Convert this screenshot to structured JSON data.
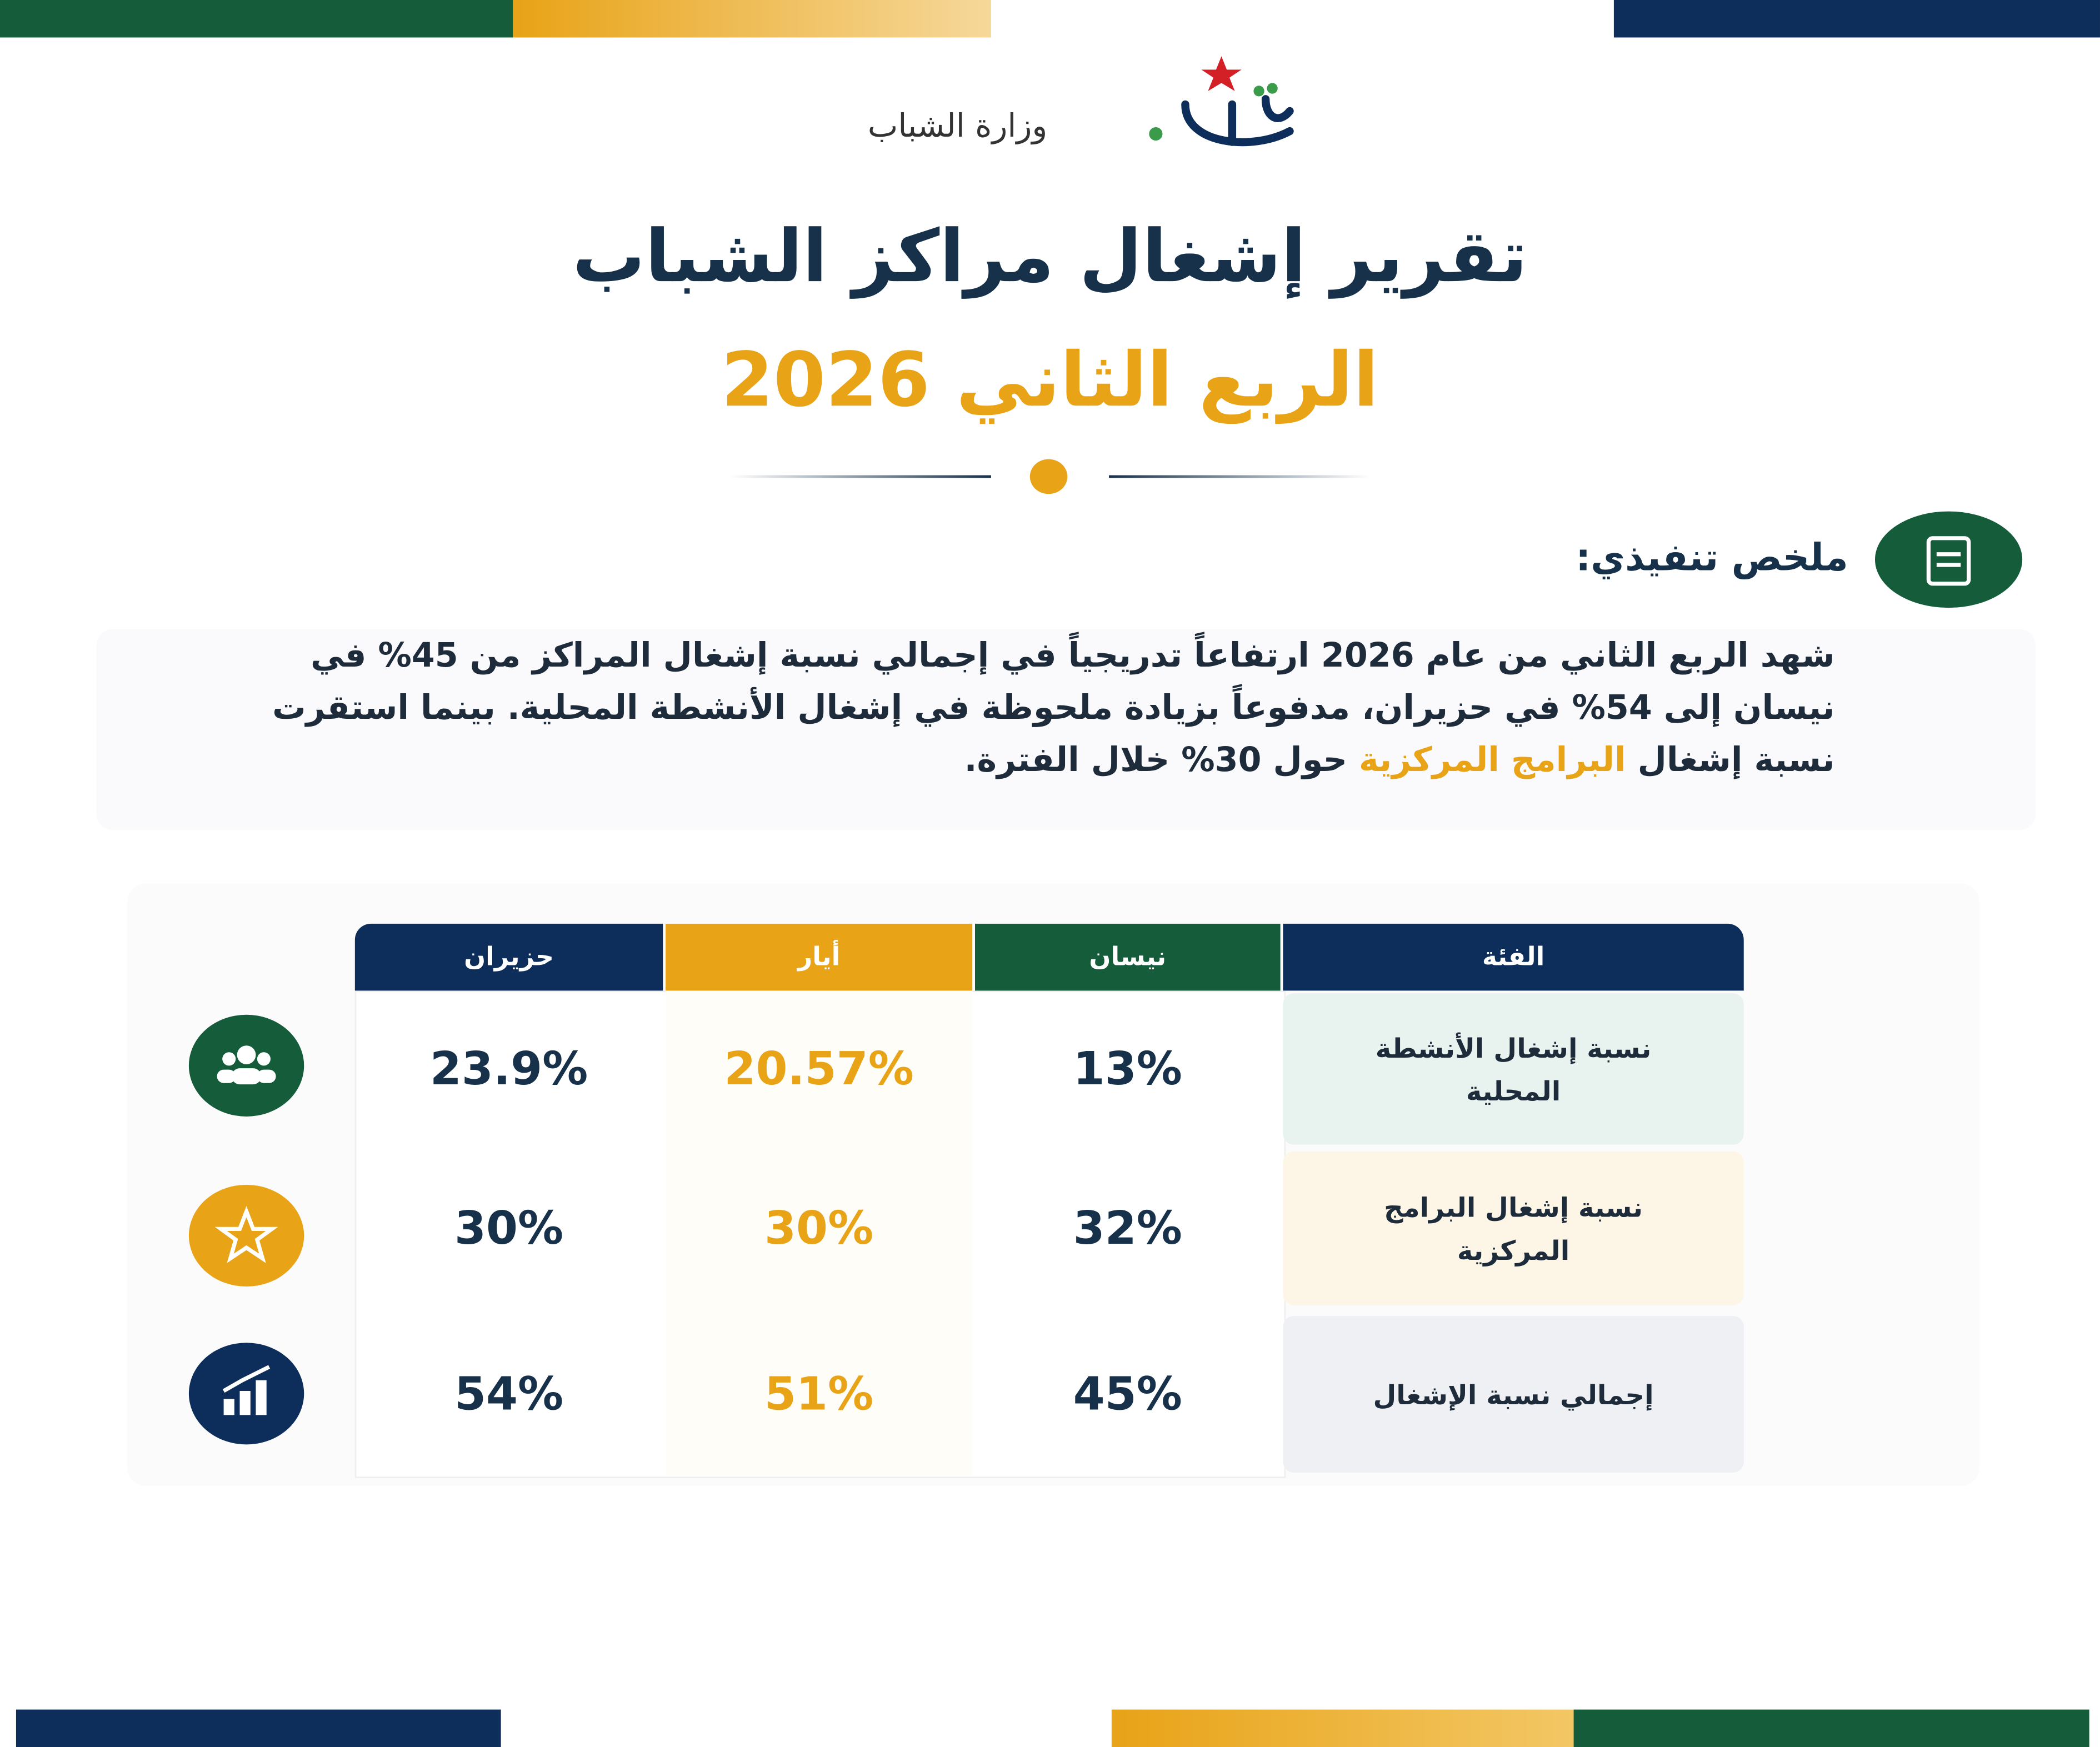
{
  "header": {
    "ministry": "وزارة الشباب",
    "title": "تقرير إشغال مراكز الشباب",
    "subtitle": "الربع الثاني 2026"
  },
  "summary": {
    "heading": "ملخص تنفيذي:",
    "text_before": "شهد الربع الثاني من عام 2026 ارتفاعاً تدريجياً في إجمالي نسبة إشغال المراكز من 45% في نيسان إلى 54% في حزيران، مدفوعاً بزيادة ملحوظة في إشغال الأنشطة المحلية. بينما استقرت نسبة إشغال ",
    "highlight": "البرامج المركزية",
    "text_after": " حول 30% خلال الفترة."
  },
  "table": {
    "columns": [
      "الفئة",
      "نيسان",
      "أيار",
      "حزيران"
    ],
    "rows": [
      [
        "نسبة إشغال الأنشطة المحلية",
        "13%",
        "20.57%",
        "23.9%"
      ],
      [
        "نسبة إشغال البرامج المركزية",
        "32%",
        "30%",
        "30%"
      ],
      [
        "إجمالي نسبة الإشغال",
        "45%",
        "51%",
        "54%"
      ]
    ]
  }
}
